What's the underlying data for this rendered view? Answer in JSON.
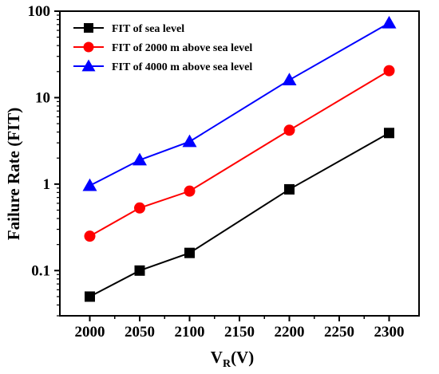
{
  "chart_data": {
    "type": "line",
    "x": [
      2000,
      2050,
      2100,
      2200,
      2300
    ],
    "xlim": [
      1970,
      2330
    ],
    "ylim": [
      0.03,
      100
    ],
    "y_scale": "log",
    "xticks": [
      "2000",
      "2050",
      "2100",
      "2150",
      "2200",
      "2250",
      "2300"
    ],
    "yticks": [
      {
        "value": 0.1,
        "label": "0.1"
      },
      {
        "value": 1,
        "label": "1"
      },
      {
        "value": 10,
        "label": "10"
      },
      {
        "value": 100,
        "label": "100"
      }
    ],
    "xlabel": "V",
    "xlabel_sub": "R",
    "xlabel_suffix": "(V)",
    "ylabel": "Failure Rate (FIT)",
    "grid": false,
    "legend_position": "top-left",
    "series": [
      {
        "name": "FIT of  sea level",
        "color": "#000000",
        "marker": "square",
        "values": [
          0.05,
          0.1,
          0.16,
          0.87,
          3.9
        ]
      },
      {
        "name": "FIT of 2000 m above sea level",
        "color": "#ff0000",
        "marker": "circle",
        "values": [
          0.25,
          0.53,
          0.83,
          4.2,
          20.5
        ]
      },
      {
        "name": "FIT of 4000 m above sea level",
        "color": "#0000ff",
        "marker": "triangle",
        "values": [
          0.96,
          1.9,
          3.1,
          16,
          73
        ]
      }
    ]
  }
}
